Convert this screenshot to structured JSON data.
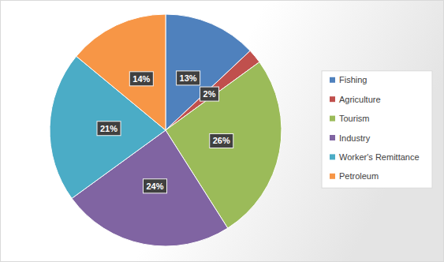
{
  "chart_data": {
    "type": "pie",
    "categories": [
      "Fishing",
      "Agriculture",
      "Tourism",
      "Industry",
      "Worker's Remittance",
      "Petroleum"
    ],
    "values": [
      13,
      2,
      26,
      24,
      21,
      14
    ],
    "value_labels": [
      "13%",
      "2%",
      "26%",
      "24%",
      "21%",
      "14%"
    ],
    "colors": [
      "#4f81bd",
      "#c0504d",
      "#9bbb59",
      "#8064a2",
      "#4bacc6",
      "#f79646"
    ],
    "data_labels": true,
    "legend": "right"
  }
}
